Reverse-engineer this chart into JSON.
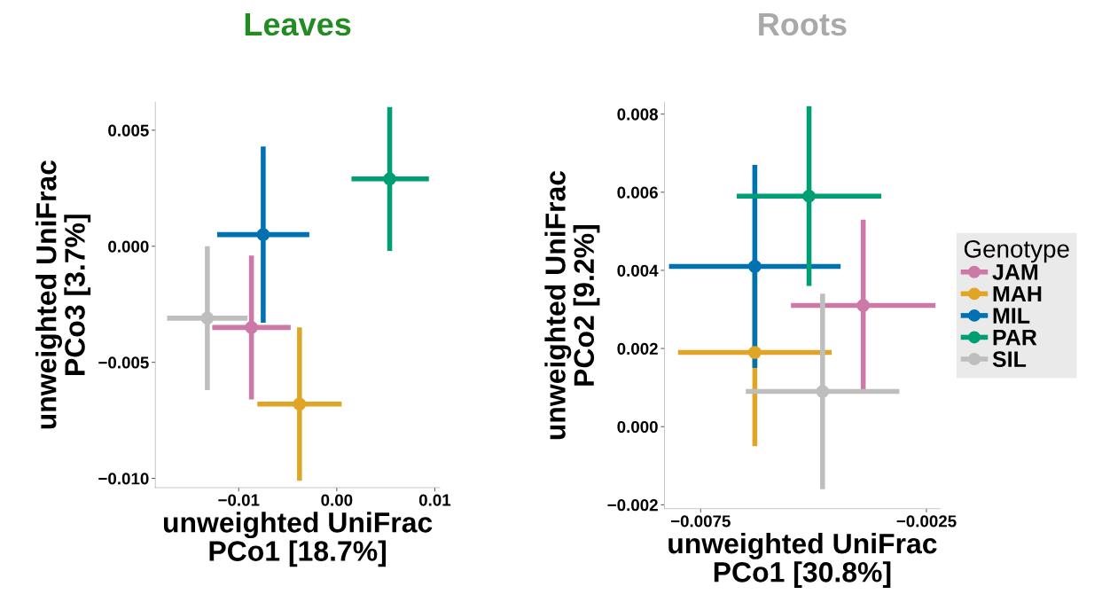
{
  "chart_data": [
    {
      "type": "scatter",
      "title": "Leaves",
      "xlabel": "unweighted UniFrac\nPCo1 [18.7%]",
      "ylabel": "unweighted UniFrac\nPCo3 [3.7%]",
      "xlim": [
        -0.0185,
        0.0105
      ],
      "ylim": [
        -0.0104,
        0.0062
      ],
      "xticks": [
        {
          "value": -0.01,
          "label": "−0.01"
        },
        {
          "value": 0.0,
          "label": "0.00"
        },
        {
          "value": 0.01,
          "label": "0.01"
        }
      ],
      "yticks": [
        {
          "value": -0.01,
          "label": "−0.010"
        },
        {
          "value": -0.005,
          "label": "−0.005"
        },
        {
          "value": 0.0,
          "label": "0.000"
        },
        {
          "value": 0.005,
          "label": "0.005"
        }
      ],
      "marker": "circle",
      "grid": false,
      "legend": false,
      "series": [
        {
          "color": "#cc79a7",
          "x": [
            -0.0087
          ],
          "values": [
            -0.0035
          ],
          "xerrors": [
            [
              -0.0127,
              -0.0047
            ]
          ],
          "errors": [
            [
              -0.0066,
              -0.0004
            ]
          ]
        },
        {
          "color": "#e0a526",
          "x": [
            -0.0038
          ],
          "values": [
            -0.0068
          ],
          "xerrors": [
            [
              -0.0081,
              0.0005
            ]
          ],
          "errors": [
            [
              -0.0101,
              -0.0035
            ]
          ]
        },
        {
          "color": "#0072b2",
          "x": [
            -0.0075
          ],
          "values": [
            0.0005
          ],
          "xerrors": [
            [
              -0.0122,
              -0.0028
            ]
          ],
          "errors": [
            [
              -0.0033,
              0.0043
            ]
          ]
        },
        {
          "color": "#009e73",
          "x": [
            0.0054
          ],
          "values": [
            0.0029
          ],
          "xerrors": [
            [
              0.0015,
              0.0094
            ]
          ],
          "errors": [
            [
              -0.0002,
              0.006
            ]
          ]
        },
        {
          "color": "#bebebe",
          "x": [
            -0.0132
          ],
          "values": [
            -0.0031
          ],
          "xerrors": [
            [
              -0.0173,
              -0.0091
            ]
          ],
          "errors": [
            [
              -0.0062,
              0.0
            ]
          ]
        }
      ]
    },
    {
      "type": "scatter",
      "title": "Roots",
      "xlabel": "unweighted UniFrac\nPCo1 [30.8%]",
      "ylabel": "unweighted UniFrac\nPCo2 [9.2%]",
      "legend_title": "Genotype",
      "xlim": [
        -0.0083,
        -0.0022
      ],
      "ylim": [
        -0.0021,
        0.0083
      ],
      "xticks": [
        {
          "value": -0.0075,
          "label": "−0.0075"
        },
        {
          "value": -0.0025,
          "label": "−0.0025"
        }
      ],
      "yticks": [
        {
          "value": -0.002,
          "label": "−0.002"
        },
        {
          "value": 0.0,
          "label": "0.000"
        },
        {
          "value": 0.002,
          "label": "0.002"
        },
        {
          "value": 0.004,
          "label": "0.004"
        },
        {
          "value": 0.006,
          "label": "0.006"
        },
        {
          "value": 0.008,
          "label": "0.008"
        }
      ],
      "marker": "circle",
      "grid": false,
      "legend": "right",
      "series": [
        {
          "name": "JAM",
          "color": "#cc79a7",
          "x": [
            -0.0039
          ],
          "values": [
            0.0031
          ],
          "xerrors": [
            [
              -0.0055,
              -0.0023
            ]
          ],
          "errors": [
            [
              0.0009,
              0.0053
            ]
          ]
        },
        {
          "name": "MAH",
          "color": "#e0a526",
          "x": [
            -0.0063
          ],
          "values": [
            0.0019
          ],
          "xerrors": [
            [
              -0.008,
              -0.0046
            ]
          ],
          "errors": [
            [
              -0.0005,
              0.0043
            ]
          ]
        },
        {
          "name": "MIL",
          "color": "#0072b2",
          "x": [
            -0.0063
          ],
          "values": [
            0.0041
          ],
          "xerrors": [
            [
              -0.0082,
              -0.0044
            ]
          ],
          "errors": [
            [
              0.0015,
              0.0067
            ]
          ]
        },
        {
          "name": "PAR",
          "color": "#009e73",
          "x": [
            -0.0051
          ],
          "values": [
            0.0059
          ],
          "xerrors": [
            [
              -0.0067,
              -0.0035
            ]
          ],
          "errors": [
            [
              0.0036,
              0.0082
            ]
          ]
        },
        {
          "name": "SIL",
          "color": "#bebebe",
          "x": [
            -0.0048
          ],
          "values": [
            0.0009
          ],
          "xerrors": [
            [
              -0.0065,
              -0.0031
            ]
          ],
          "errors": [
            [
              -0.0016,
              0.0034
            ]
          ]
        }
      ]
    }
  ]
}
